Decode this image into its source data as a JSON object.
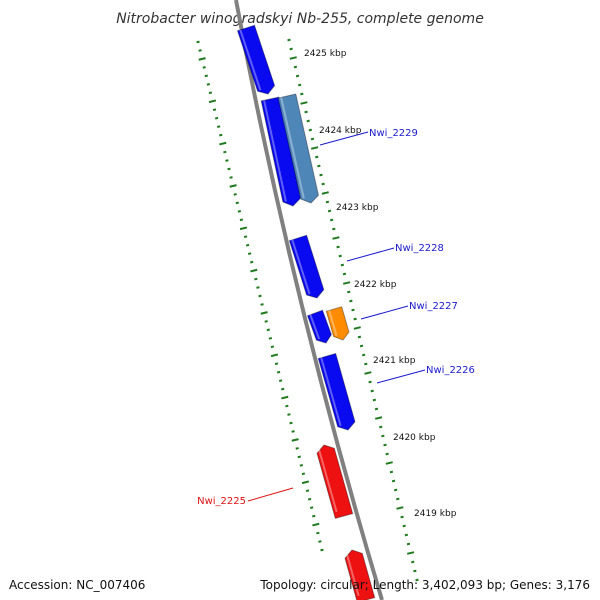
{
  "title": "Nitrobacter winogradskyi Nb-255, complete genome",
  "accession": "Accession: NC_007406",
  "summary": "Topology: circular; Length: 3,402,093 bp; Genes: 3,176",
  "colors": {
    "backbone": "#808080",
    "tick": "#1f7a1f",
    "gene_forward": "#0a0af0",
    "gene_reverse": "#ee1111",
    "gene_highlight": "#4f86b8",
    "gene_orange": "#ff8c00",
    "label_forward": "#1a1acc",
    "label_reverse": "#dd1111"
  },
  "ticks": [
    "2425 kbp",
    "2424 kbp",
    "2423 kbp",
    "2422 kbp",
    "2421 kbp",
    "2420 kbp",
    "2419 kbp"
  ],
  "genes": [
    {
      "name": "",
      "color_key": "gene_forward"
    },
    {
      "name": "",
      "color_key": "gene_forward"
    },
    {
      "name": "Nwi_2229",
      "color_key": "gene_highlight"
    },
    {
      "name": "Nwi_2228",
      "color_key": "gene_forward"
    },
    {
      "name": "",
      "color_key": "gene_forward"
    },
    {
      "name": "Nwi_2227",
      "color_key": "gene_orange"
    },
    {
      "name": "Nwi_2226",
      "color_key": "gene_forward"
    },
    {
      "name": "Nwi_2225",
      "color_key": "gene_reverse"
    },
    {
      "name": "",
      "color_key": "gene_reverse"
    }
  ]
}
